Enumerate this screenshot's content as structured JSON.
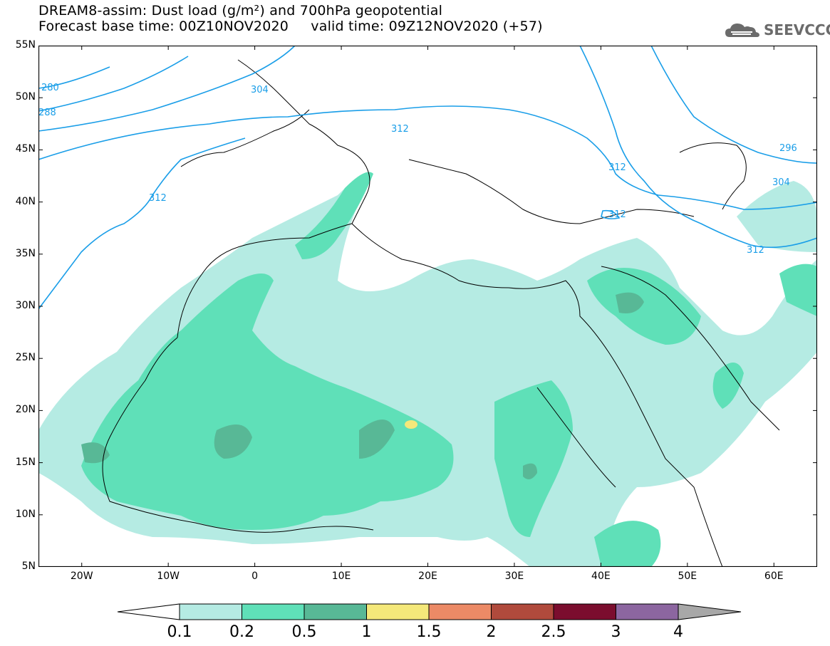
{
  "title": {
    "line1": "DREAM8-assim: Dust load (g/m²) and 700hPa geopotential",
    "line2": "Forecast base time: 00Z10NOV2020     valid time: 09Z12NOV2020 (+57)"
  },
  "logo": {
    "text": "SEEVCCC",
    "icon": "cloud-logo-icon"
  },
  "axes": {
    "lat_labels": [
      "55N",
      "50N",
      "45N",
      "40N",
      "35N",
      "30N",
      "25N",
      "20N",
      "15N",
      "10N",
      "5N"
    ],
    "lon_labels": [
      "20W",
      "10W",
      "0",
      "10E",
      "20E",
      "30E",
      "40E",
      "50E",
      "60E"
    ],
    "lat_range": [
      5,
      55
    ],
    "lon_range": [
      -25,
      65
    ]
  },
  "contours": {
    "units": "geopotential dam",
    "labels": [
      "288",
      "280",
      "304",
      "312",
      "312",
      "312",
      "312",
      "312",
      "296",
      "304"
    ],
    "color": "#1a9ee8"
  },
  "colorbar": {
    "levels": [
      "0.1",
      "0.2",
      "0.5",
      "1",
      "1.5",
      "2",
      "2.5",
      "3",
      "4"
    ],
    "colors": [
      "#ffffff",
      "#b5ebe3",
      "#5fe0b8",
      "#58b896",
      "#f4e87a",
      "#ec8a66",
      "#b04a3c",
      "#7b0d2e",
      "#8c66a0",
      "#a8a8a8"
    ]
  },
  "chart_data": {
    "type": "heatmap",
    "title": "DREAM8-assim: Dust load (g/m²) and 700hPa geopotential",
    "x_range": [
      -25,
      65
    ],
    "y_range": [
      5,
      55
    ],
    "levels": [
      0.1,
      0.2,
      0.5,
      1,
      1.5,
      2,
      2.5,
      3,
      4
    ],
    "contour_values": [
      280,
      288,
      296,
      304,
      312
    ]
  }
}
